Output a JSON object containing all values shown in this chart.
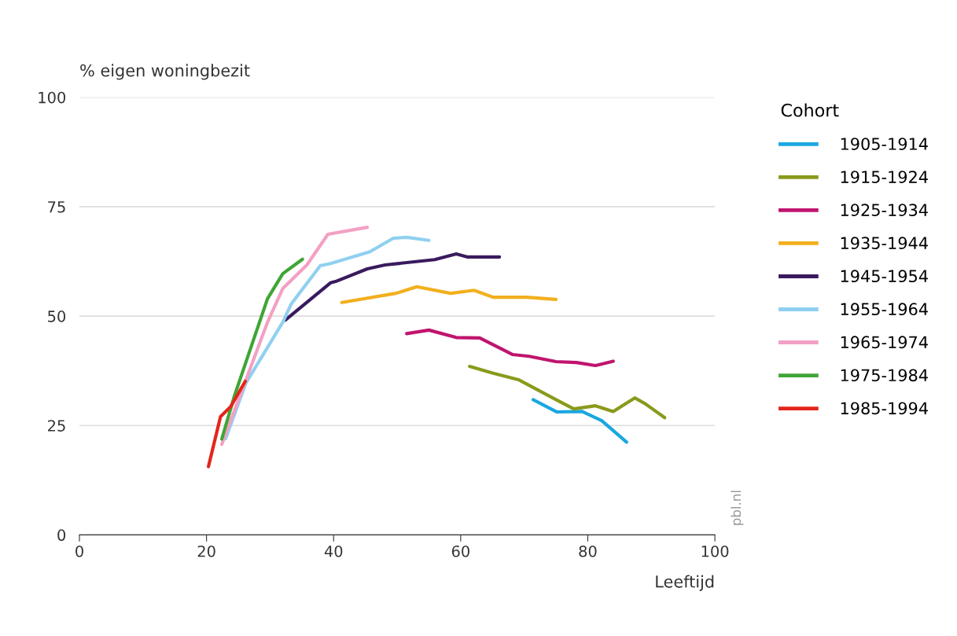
{
  "chart_data": {
    "type": "line",
    "ylabel": "% eigen woningbezit",
    "xlabel": "Leeftijd",
    "legend_title": "Cohort",
    "legend": "right",
    "grid": "y",
    "line_style": "solid",
    "marker": "none",
    "xlim": [
      0,
      100
    ],
    "xticks": [
      0,
      20,
      40,
      60,
      80,
      100
    ],
    "ylim": [
      0,
      100
    ],
    "yticks": [
      0,
      25,
      50,
      75,
      100
    ],
    "annotations": [
      "pbl.nl"
    ],
    "series": [
      {
        "name": "1905-1914",
        "color": "#1aa7e0",
        "x": [
          71.4,
          75.1,
          79.1,
          82.2,
          86.1
        ],
        "values": [
          30.9,
          28.1,
          28.2,
          26.1,
          21.2
        ]
      },
      {
        "name": "1915-1924",
        "color": "#8a9a1b",
        "x": [
          61.4,
          65,
          69.2,
          75,
          77.8,
          81.2,
          84,
          87.4,
          89,
          92.1
        ],
        "values": [
          38.5,
          37,
          35.4,
          30.9,
          28.8,
          29.5,
          28.2,
          31.3,
          30,
          26.8
        ]
      },
      {
        "name": "1925-1934",
        "color": "#c0156e",
        "x": [
          51.5,
          55,
          59.3,
          63,
          68.2,
          70.8,
          75,
          78.2,
          81.2,
          84
        ],
        "values": [
          46,
          46.8,
          45.1,
          45,
          41.2,
          40.8,
          39.6,
          39.4,
          38.7,
          39.7
        ]
      },
      {
        "name": "1935-1944",
        "color": "#f2b01e",
        "x": [
          41.3,
          49.8,
          53.1,
          58.4,
          62.1,
          65.1,
          70.4,
          75
        ],
        "values": [
          53.1,
          55.2,
          56.7,
          55.2,
          55.9,
          54.3,
          54.3,
          53.8
        ]
      },
      {
        "name": "1945-1954",
        "color": "#3a1a5e",
        "x": [
          32.4,
          39.5,
          40.3,
          45.3,
          48.1,
          55.9,
          59.3,
          61.1,
          66.1
        ],
        "values": [
          49.1,
          57.6,
          57.9,
          60.8,
          61.7,
          62.9,
          64.2,
          63.5,
          63.5
        ]
      },
      {
        "name": "1955-1964",
        "color": "#8fd0f0",
        "x": [
          23,
          26.2,
          32,
          33.3,
          37.9,
          39.5,
          45.7,
          49.4,
          51.5,
          55
        ],
        "values": [
          22,
          34.7,
          48.6,
          52.7,
          61.5,
          62,
          64.7,
          67.8,
          68,
          67.3
        ]
      },
      {
        "name": "1965-1974",
        "color": "#f3a0c4",
        "x": [
          22.4,
          26.2,
          29.6,
          32,
          35.8,
          39.1,
          45.3
        ],
        "values": [
          20.7,
          35.4,
          48.6,
          56.3,
          61.7,
          68.7,
          70.3
        ]
      },
      {
        "name": "1975-1984",
        "color": "#3fa535",
        "x": [
          22.4,
          24.4,
          29.6,
          32,
          35.1
        ],
        "values": [
          21.9,
          31.8,
          54,
          59.7,
          63
        ]
      },
      {
        "name": "1985-1994",
        "color": "#e3261b",
        "x": [
          20.3,
          22.2,
          23.8,
          26.1
        ],
        "values": [
          15.6,
          27,
          29.3,
          35.1
        ]
      }
    ]
  }
}
